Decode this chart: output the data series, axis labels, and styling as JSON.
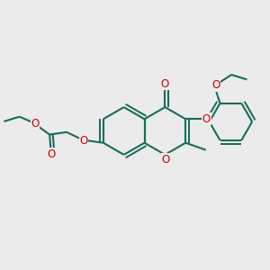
{
  "bg_color": "#ebebeb",
  "bond_color": "#1a6b5a",
  "heteroatom_color": "#cc0000",
  "bond_width": 1.5,
  "font_size": 8.5,
  "fig_width": 3.0,
  "fig_height": 3.0,
  "dpi": 100,
  "xlim": [
    0,
    10
  ],
  "ylim": [
    0,
    10
  ]
}
